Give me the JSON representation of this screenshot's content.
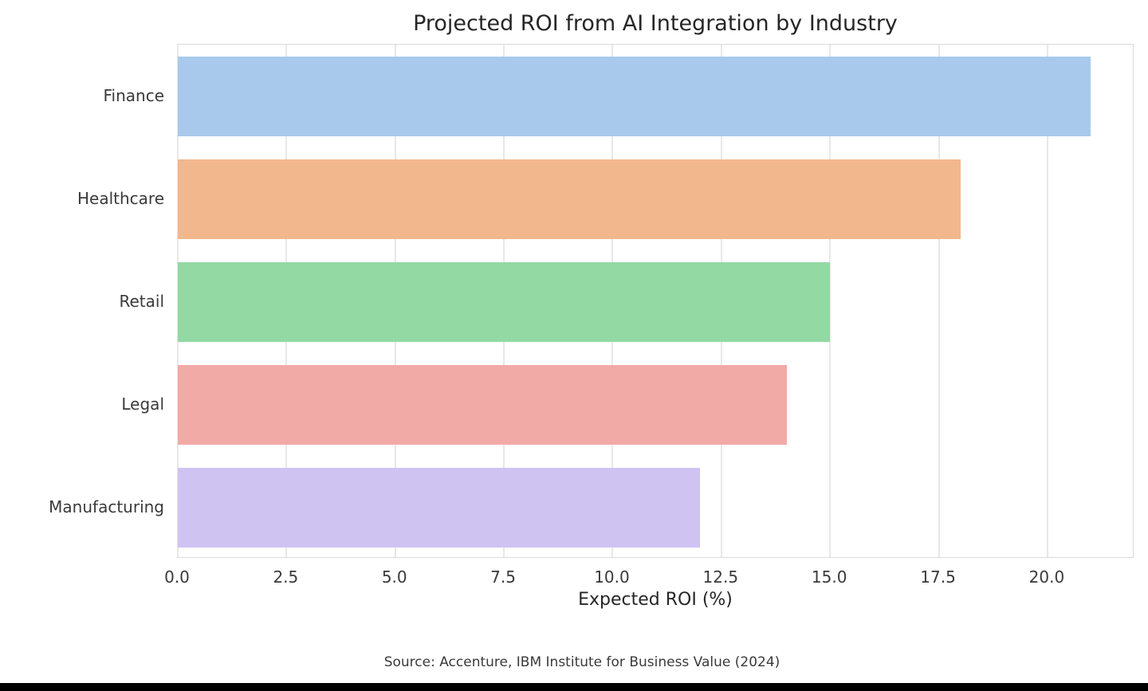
{
  "chart_data": {
    "type": "bar",
    "orientation": "horizontal",
    "title": "Projected ROI from AI Integration by Industry",
    "xlabel": "Expected ROI (%)",
    "ylabel": "",
    "categories": [
      "Finance",
      "Healthcare",
      "Retail",
      "Legal",
      "Manufacturing"
    ],
    "values": [
      21,
      18,
      15,
      14,
      12
    ],
    "xlim": [
      0,
      22
    ],
    "xticks": [
      0.0,
      2.5,
      5.0,
      7.5,
      10.0,
      12.5,
      15.0,
      17.5,
      20.0
    ],
    "xtick_labels": [
      "0.0",
      "2.5",
      "5.0",
      "7.5",
      "10.0",
      "12.5",
      "15.0",
      "17.5",
      "20.0"
    ],
    "grid": "vertical-only",
    "legend_position": "none",
    "bar_colors": [
      "#a9c9ec",
      "#f2b78d",
      "#93d9a4",
      "#f2aaa6",
      "#cfc3f2"
    ]
  },
  "style_colors": {
    "grid_color": "#e8e8e8",
    "spine_color": "#d9d9d9",
    "title_color": "#262626",
    "tick_label_color": "#3a3a3a",
    "bottom_strip_color": "#000000"
  },
  "footer": {
    "source_note": "Source: Accenture, IBM Institute for Business Value (2024)"
  }
}
